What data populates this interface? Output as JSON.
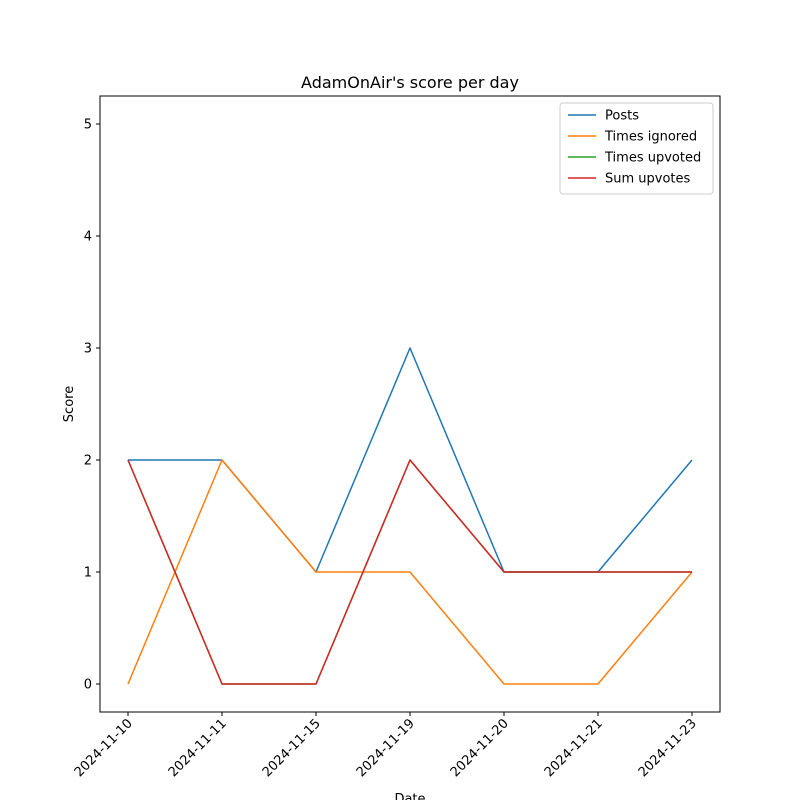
{
  "chart_data": {
    "type": "line",
    "title": "AdamOnAir's score per day",
    "xlabel": "Date",
    "ylabel": "Score",
    "categories": [
      "2024-11-10",
      "2024-11-11",
      "2024-11-15",
      "2024-11-19",
      "2024-11-20",
      "2024-11-21",
      "2024-11-23"
    ],
    "yticks": [
      0,
      1,
      2,
      3,
      4,
      5
    ],
    "ylim": [
      -0.25,
      5.25
    ],
    "grid": false,
    "legend_position": "top-right",
    "series": [
      {
        "name": "Posts",
        "color": "#1f77b4",
        "values": [
          2,
          2,
          1,
          3,
          1,
          1,
          2
        ]
      },
      {
        "name": "Times ignored",
        "color": "#ff7f0e",
        "values": [
          0,
          2,
          1,
          1,
          0,
          0,
          1
        ]
      },
      {
        "name": "Times upvoted",
        "color": "#2ca02c",
        "values": [
          2,
          0,
          0,
          2,
          1,
          1,
          1
        ]
      },
      {
        "name": "Sum upvotes",
        "color": "#d62728",
        "values": [
          2,
          0,
          0,
          2,
          1,
          1,
          1
        ]
      }
    ]
  }
}
